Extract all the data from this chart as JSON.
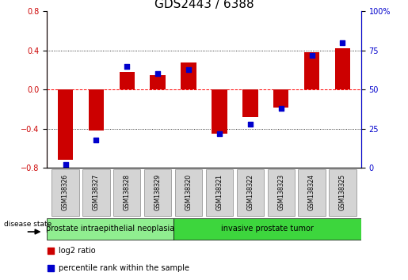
{
  "title": "GDS2443 / 6388",
  "samples": [
    "GSM138326",
    "GSM138327",
    "GSM138328",
    "GSM138329",
    "GSM138320",
    "GSM138321",
    "GSM138322",
    "GSM138323",
    "GSM138324",
    "GSM138325"
  ],
  "log2_ratio": [
    -0.72,
    -0.42,
    0.18,
    0.15,
    0.28,
    -0.45,
    -0.28,
    -0.18,
    0.38,
    0.42
  ],
  "percentile_rank": [
    2,
    18,
    65,
    60,
    63,
    22,
    28,
    38,
    72,
    80
  ],
  "ylim_left": [
    -0.8,
    0.8
  ],
  "ylim_right": [
    0,
    100
  ],
  "yticks_left": [
    -0.8,
    -0.4,
    0.0,
    0.4,
    0.8
  ],
  "yticks_right": [
    0,
    25,
    50,
    75,
    100
  ],
  "hline_dotted": [
    0.4,
    -0.4
  ],
  "hline_dashed": 0.0,
  "bar_color": "#cc0000",
  "dot_color": "#0000cc",
  "group1_label": "prostate intraepithelial neoplasia",
  "group2_label": "invasive prostate tumor",
  "group1_color": "#90ee90",
  "group2_color": "#3dd63d",
  "group1_count": 4,
  "group2_count": 6,
  "legend_bar_label": "log2 ratio",
  "legend_dot_label": "percentile rank within the sample",
  "disease_state_label": "disease state",
  "left_tick_color": "#cc0000",
  "right_tick_color": "#0000cc",
  "title_fontsize": 11,
  "tick_fontsize": 7,
  "sample_fontsize": 5.5,
  "group_fontsize": 7,
  "legend_fontsize": 7,
  "bar_width": 0.5
}
